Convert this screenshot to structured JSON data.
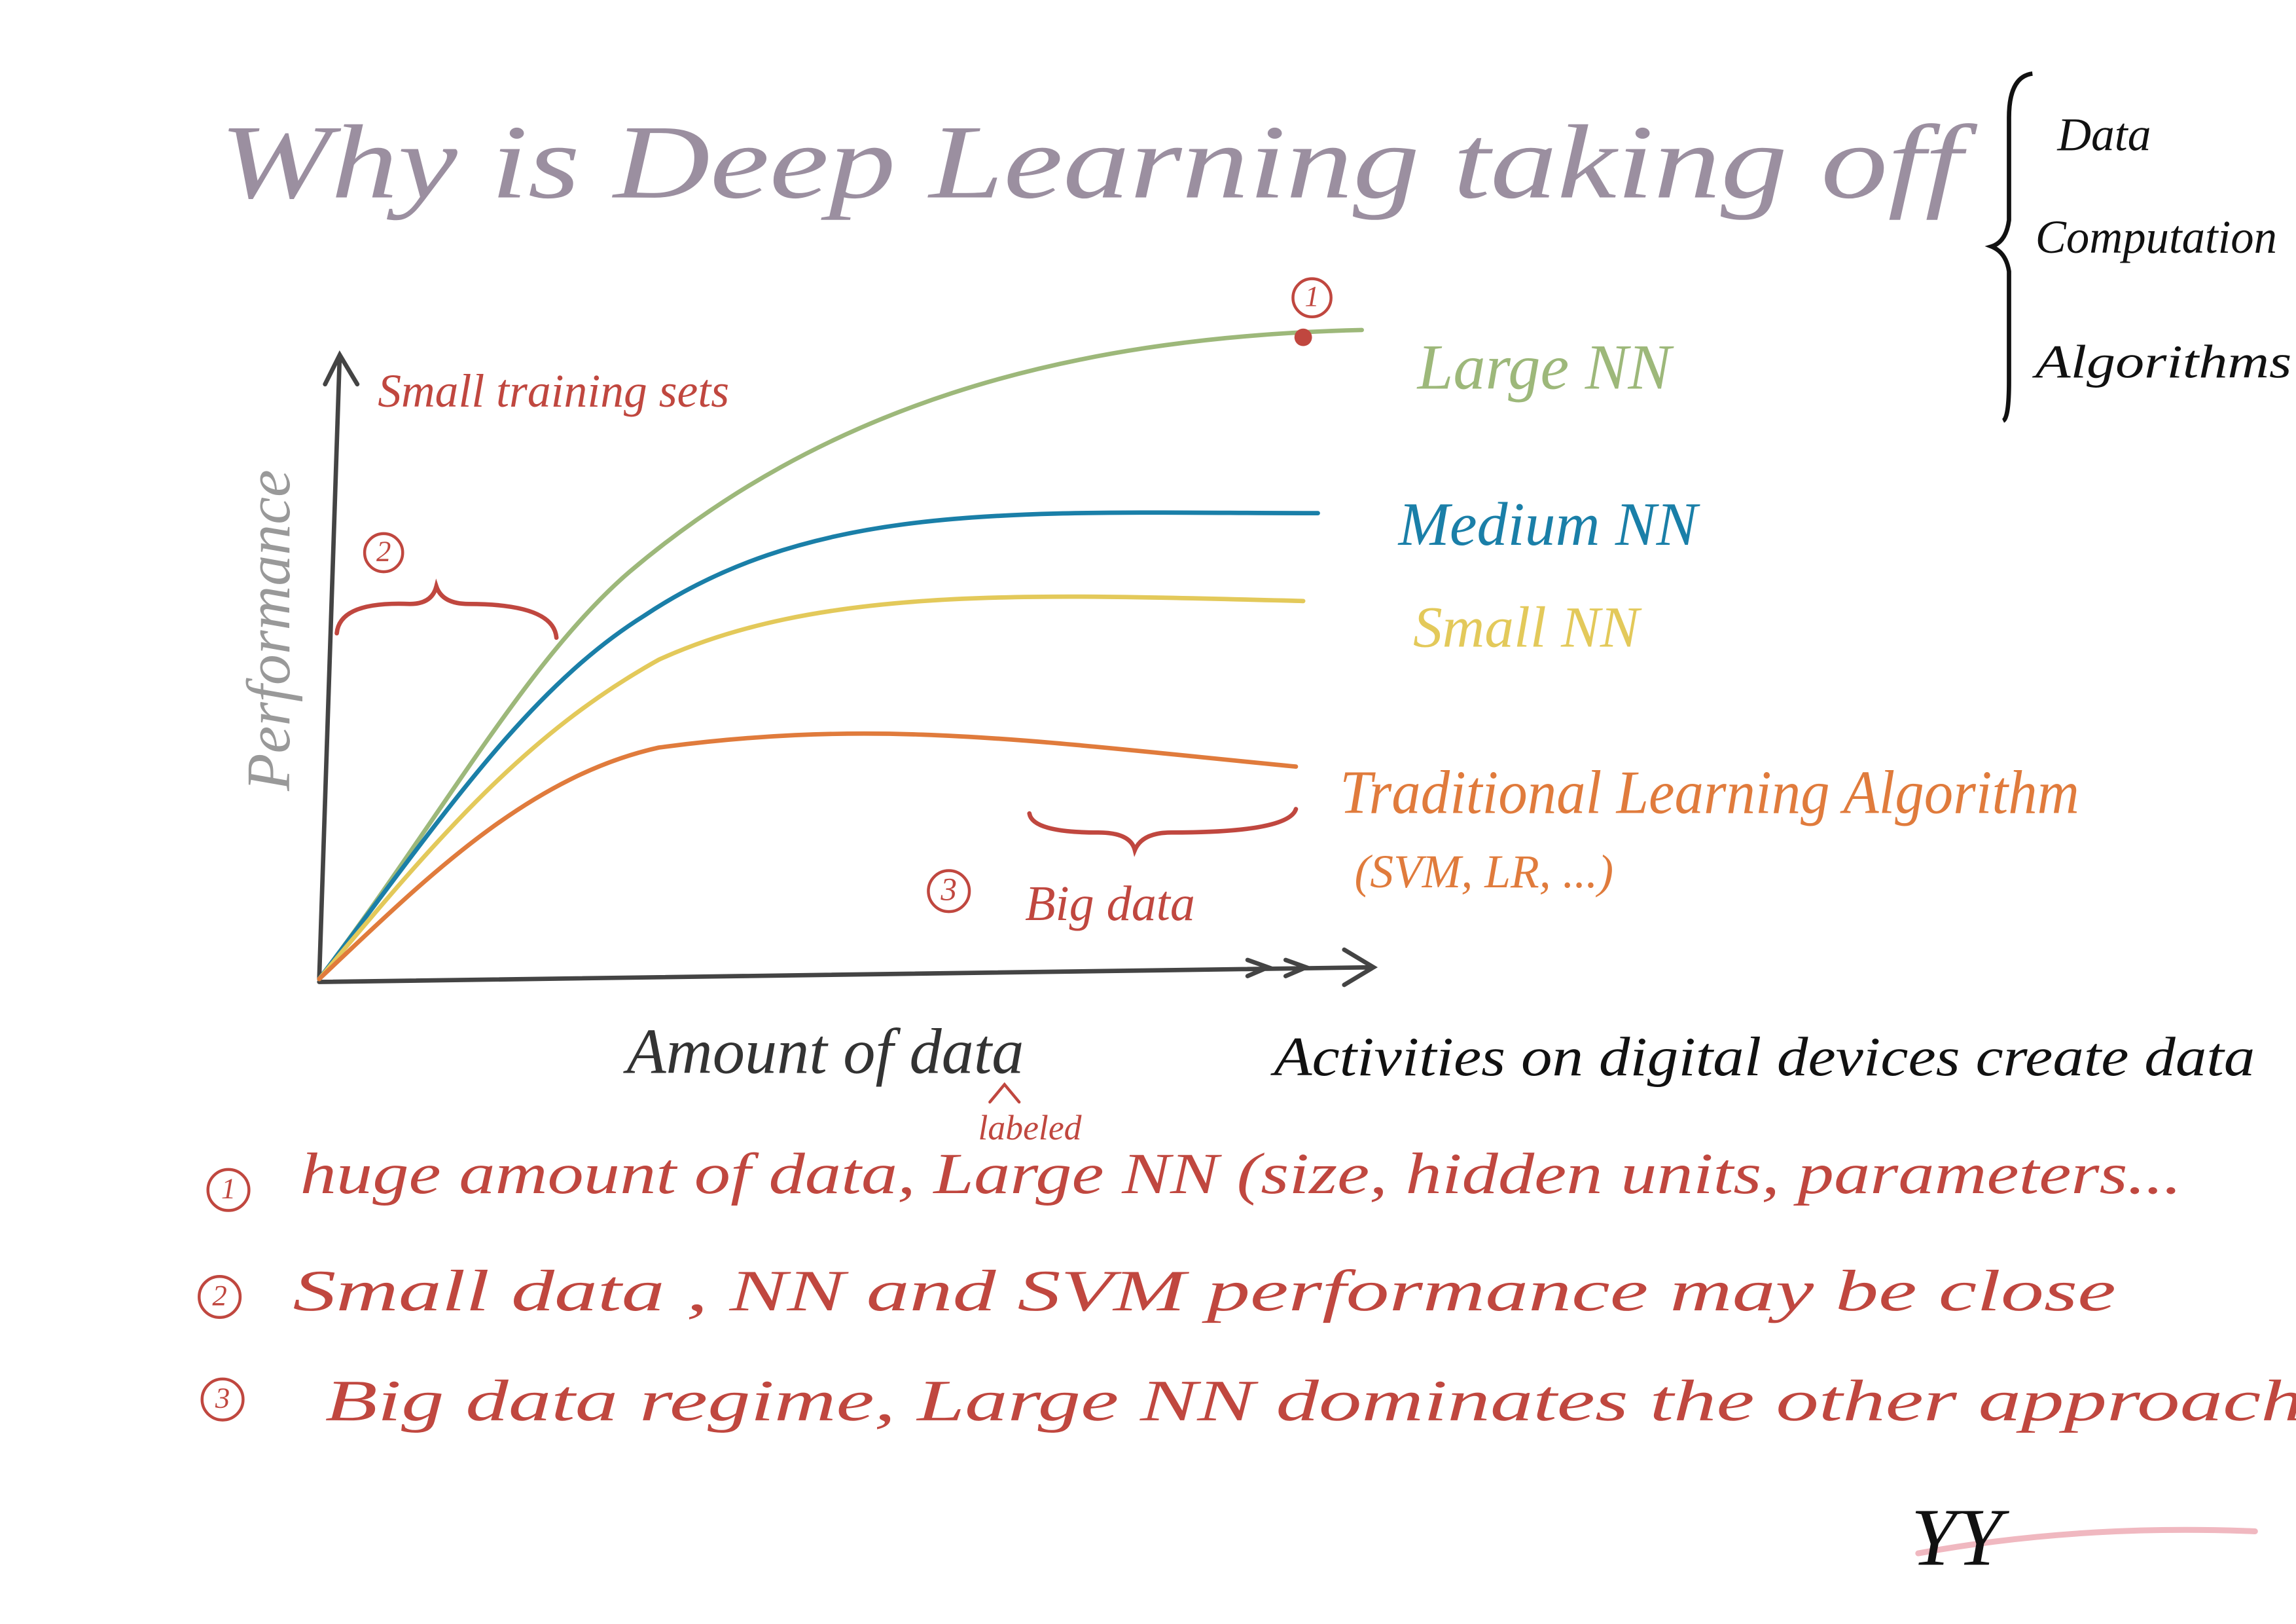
{
  "title": "Why is Deep Learning taking off",
  "drivers": [
    "Data",
    "Computation",
    "Algorithms"
  ],
  "axes": {
    "y_label": "Performance",
    "x_label": "Amount of data",
    "x_label_note": "labeled"
  },
  "side_note": "Activities on digital devices create data",
  "curves": [
    "Large NN",
    "Medium NN",
    "Small NN",
    "Traditional Learning Algorithm"
  ],
  "curve_note": "(SVM, LR, ...)",
  "markers": [
    {
      "number": "1"
    },
    {
      "number": "2",
      "label": "Small training sets"
    },
    {
      "number": "3",
      "label": "Big data"
    }
  ],
  "notes": [
    {
      "number": "1",
      "text": "huge amount of data, Large NN (size, hidden units, parameters..."
    },
    {
      "number": "2",
      "text": "Small data , NN and SVM performance may be close"
    },
    {
      "number": "3",
      "text": "Big data regime, Large NN dominates the other approaches"
    }
  ],
  "signature": "YY"
}
